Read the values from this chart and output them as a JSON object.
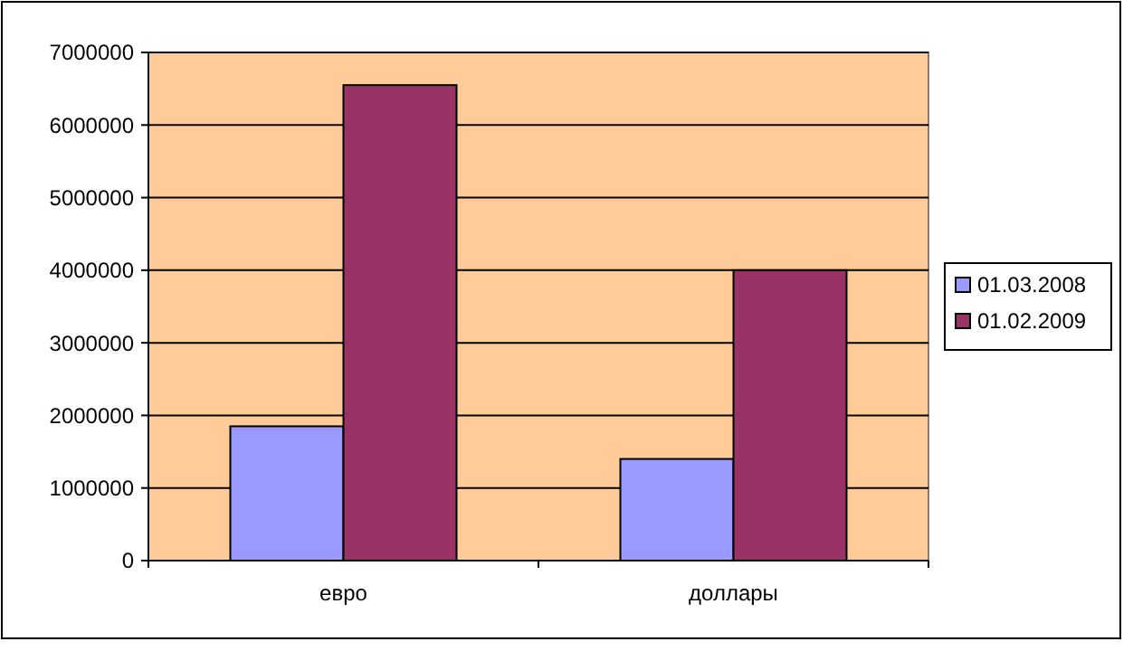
{
  "chart_data": {
    "type": "bar",
    "categories": [
      "евро",
      "доллары"
    ],
    "series": [
      {
        "name": "01.03.2008",
        "color": "#9999ff",
        "values": [
          1850000,
          1400000
        ]
      },
      {
        "name": "01.02.2009",
        "color": "#993366",
        "values": [
          6550000,
          4000000
        ]
      }
    ],
    "ylim": [
      0,
      7000000
    ],
    "yticks": [
      0,
      1000000,
      2000000,
      3000000,
      4000000,
      5000000,
      6000000,
      7000000
    ],
    "grid": "y",
    "legend": "right"
  }
}
